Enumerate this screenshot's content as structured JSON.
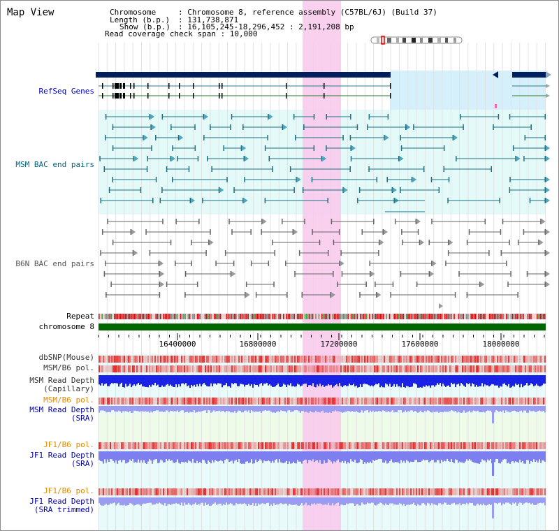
{
  "panel": {
    "title": "Map View"
  },
  "info": {
    "chromosome_key": "Chromosome",
    "chromosome_val": ": Chromosome 8, reference assembly (C57BL/6J) (Build 37)",
    "length_key": "Length (b.p.)",
    "length_val": ": 131,738,871",
    "show_key": "Show (b.p.)",
    "show_val": ": 16,105,245-18,296,452 : 2,191,208 bp",
    "coverage": "Read coverage check span : 10,000"
  },
  "tracks": {
    "refseq": "RefSeq Genes",
    "msm_bac": "MSM BAC end pairs",
    "b6n_bac": "B6N BAC end pairs",
    "repeat": "Repeat",
    "chromosome": "chromosome 8",
    "dbsnp": "dbSNP(Mouse)",
    "msm_b6_pol": "MSM/B6 pol.",
    "msm_depth_cap_1": "MSM Read Depth",
    "msm_depth_cap_2": "(Capillary)",
    "msm_b6_pol_2": "MSM/B6 pol.",
    "msm_depth_sra_1": "MSM Read Depth",
    "msm_depth_sra_2": "(SRA)",
    "jf1_b6_pol": "JF1/B6 pol.",
    "jf1_depth_sra_1": "JF1 Read Depth",
    "jf1_depth_sra_2": "(SRA)",
    "jf1_b6_pol_2": "JF1/B6 pol.",
    "jf1_depth_trim_1": "JF1 Read Depth",
    "jf1_depth_trim_2": "(SRA trimmed)"
  },
  "axis": {
    "ticks": [
      "16400000",
      "16800000",
      "17200000",
      "17600000",
      "18000000"
    ]
  },
  "colors": {
    "refseq_label": "#0000cc",
    "msm_label": "#006680",
    "b6n_label": "#555555",
    "orange_label": "#e08800",
    "blue_label": "#0000aa",
    "highlight": "#f9c8ec",
    "chromosome_bar": "#006600",
    "refseq_gene": "#001f5c"
  }
}
